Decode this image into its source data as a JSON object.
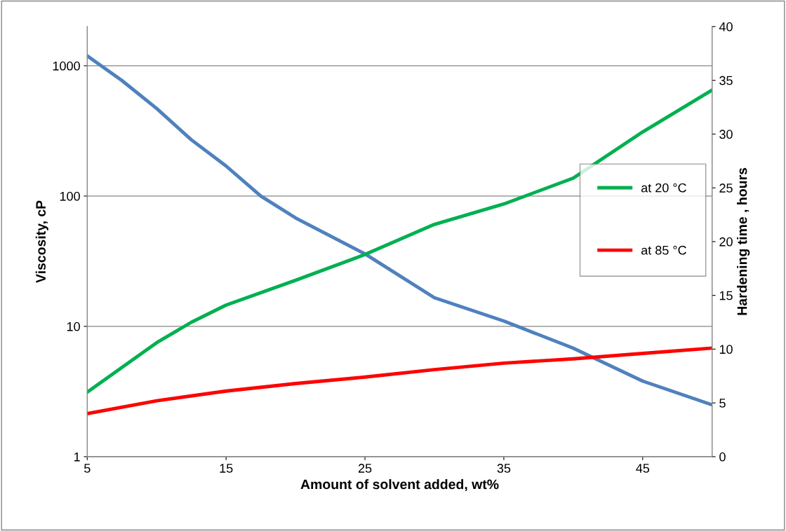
{
  "chart_data": {
    "type": "line",
    "xlabel": "Amount of solvent added, wt%",
    "ylabel": "Viscosity, cP",
    "y2label": "Hardening time , hours",
    "log": "y",
    "grid": "y",
    "legend": "right",
    "marker": "none",
    "line_style": "solid",
    "xlim": [
      5,
      50
    ],
    "xticks": [
      5,
      15,
      25,
      35,
      45
    ],
    "ylim": [
      1,
      2000
    ],
    "yticks": [
      1,
      10,
      100,
      1000
    ],
    "y2lim": [
      0,
      40
    ],
    "y2ticks": [
      0,
      5,
      10,
      15,
      20,
      25,
      30,
      35,
      40
    ],
    "series": [
      {
        "color": "#4f81bd",
        "x": [
          5,
          7.5,
          10,
          12.5,
          15,
          17.5,
          20,
          25,
          30,
          35,
          40,
          45,
          50
        ],
        "values": [
          1190,
          770,
          470,
          270,
          170,
          100,
          68,
          36,
          16.6,
          11,
          6.8,
          3.8,
          2.5
        ]
      },
      {
        "name": "at 20 °C",
        "color": "#00b050",
        "axis": "y2",
        "x": [
          5,
          10,
          12.5,
          15,
          20,
          25,
          30,
          35,
          40,
          45,
          50
        ],
        "values": [
          6,
          10.6,
          12.5,
          14.1,
          16.4,
          18.8,
          21.6,
          23.5,
          25.9,
          30.2,
          34.1
        ]
      },
      {
        "name": "at 85 °C",
        "color": "#ff0000",
        "axis": "y2",
        "x": [
          5,
          10,
          15,
          20,
          25,
          30,
          35,
          40,
          45,
          50
        ],
        "values": [
          4,
          5.2,
          6.1,
          6.8,
          7.4,
          8.1,
          8.7,
          9.1,
          9.6,
          10.1
        ]
      }
    ]
  }
}
